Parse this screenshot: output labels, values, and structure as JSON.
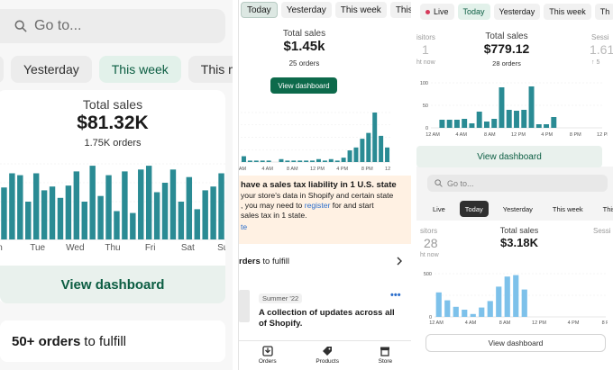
{
  "colors": {
    "teal": "#2a8b94",
    "green": "#0d6a4b",
    "light_blue": "#7dc1ea",
    "live_dot": "#d63a5b"
  },
  "panel1": {
    "search_placeholder": "Go to...",
    "tabs": [
      "Yesterday",
      "This week",
      "This mont"
    ],
    "active_tab": "This week",
    "total_sales_label": "Total sales",
    "total_sales_value": "$81.32K",
    "orders_count": "1.75K orders",
    "chart_data": {
      "type": "bar",
      "x_ticks": [
        "n",
        "Tue",
        "Wed",
        "Thu",
        "Fri",
        "Sat",
        "Sun"
      ],
      "values": [
        55,
        70,
        68,
        40,
        70,
        52,
        56,
        44,
        57,
        72,
        40,
        78,
        46,
        68,
        30,
        72,
        28,
        74,
        78,
        50,
        60,
        74,
        40,
        66,
        32,
        52,
        56,
        70
      ]
    },
    "view_dashboard": "View dashboard",
    "fulfill_count": "50+ orders",
    "fulfill_suffix": "to fulfill"
  },
  "panel2": {
    "tabs": [
      "Today",
      "Yesterday",
      "This week",
      "This"
    ],
    "active_tab": "Today",
    "total_sales_label": "Total sales",
    "total_sales_value": "$1.45k",
    "orders_count": "25 orders",
    "view_dashboard": "View dashboard",
    "chart_data": {
      "type": "bar",
      "x_ticks": [
        "AM",
        "4 AM",
        "8 AM",
        "12 PM",
        "4 PM",
        "8 PM",
        "12 PM"
      ],
      "values": [
        4,
        1,
        1,
        1,
        1,
        0,
        2,
        1,
        1,
        1,
        1,
        1,
        2,
        1,
        2,
        1,
        3,
        8,
        10,
        16,
        20,
        34,
        18,
        10
      ]
    },
    "alert_title": "have a sales tax liability in 1 U.S. state",
    "alert_text_1": "your store's data in Shopify and certain state",
    "alert_text_2": ", you may need to",
    "alert_link": "register",
    "alert_text_3": "for and start",
    "alert_text_4": "sales tax in 1 state.",
    "alert_text_5": "te",
    "fulfill_prefix": "rders",
    "fulfill_suffix": "to fulfill",
    "news_tag": "Summer '22",
    "news_title": "A collection of updates across all of Shopify.",
    "nav": [
      "Orders",
      "Products",
      "Store"
    ]
  },
  "panel3": {
    "live_label": "Live",
    "tabs": [
      "Today",
      "Yesterday",
      "This week",
      "Th"
    ],
    "active_tab": "Today",
    "visitors_label": "isitors",
    "visitors_value": "1",
    "visitors_sub": "ht now",
    "sessions_label": "Sessi",
    "sessions_value": "1.61",
    "sessions_pct": "↑ 5",
    "total_sales_label": "Total sales",
    "total_sales_value": "$779.12",
    "orders_count": "28 orders",
    "chart_data": {
      "type": "bar",
      "y_ticks": [
        "100",
        "50",
        "0"
      ],
      "x_ticks": [
        "12 AM",
        "4 AM",
        "8 AM",
        "12 PM",
        "4 PM",
        "8 PM",
        "12 PM"
      ],
      "values": [
        0,
        18,
        18,
        18,
        20,
        10,
        36,
        14,
        20,
        90,
        40,
        38,
        40,
        92,
        8,
        8,
        24,
        0,
        0,
        0,
        0,
        0,
        0
      ]
    },
    "view_dashboard_1": "View dashboard",
    "search_placeholder": "Go to...",
    "tabs2": [
      "Live",
      "Today",
      "Yesterday",
      "This week",
      "This mon"
    ],
    "active_tab2": "Today",
    "visitors2_label": "sitors",
    "visitors2_value": "28",
    "visitors2_sub": "ht now",
    "sessions2_label": "Sessi",
    "total_sales2_label": "Total sales",
    "total_sales2_value": "$3.18K",
    "chart2_data": {
      "type": "bar",
      "y_ticks": [
        "500",
        "0"
      ],
      "x_ticks": [
        "12 AM",
        "4 AM",
        "8 AM",
        "12 PM",
        "4 PM",
        "8 PM"
      ],
      "values": [
        340,
        230,
        140,
        100,
        40,
        130,
        220,
        420,
        560,
        580,
        380,
        0,
        0,
        0,
        0,
        0,
        0,
        0,
        0,
        0
      ]
    },
    "view_dashboard_2": "View dashboard"
  }
}
